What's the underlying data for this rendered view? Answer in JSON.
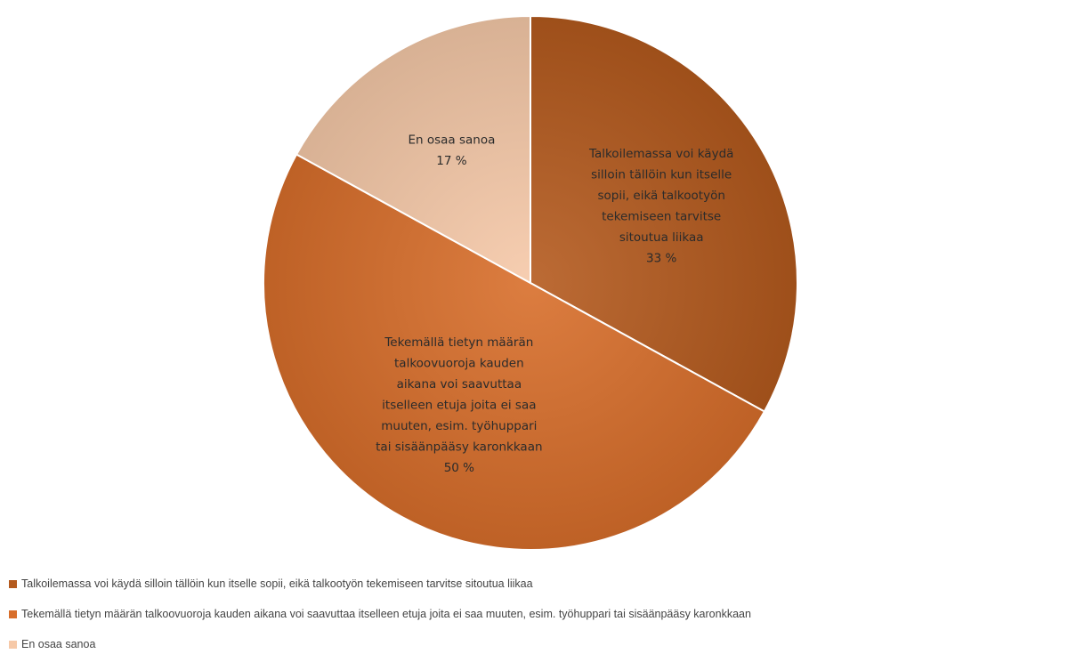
{
  "chart_data": {
    "type": "pie",
    "title": "",
    "slices": [
      {
        "label": "Talkoilemassa voi käydä silloin tällöin kun itselle sopii, eikä talkootyön tekemiseen tarvitse sitoutua liikaa",
        "label_lines": [
          "Talkoilemassa voi käydä",
          "silloin tällöin kun itselle",
          "sopii, eikä talkootyön",
          "tekemiseen tarvitse",
          "sitoutua liikaa"
        ],
        "value": 33,
        "value_label": "33 %",
        "color": "#b45a1e"
      },
      {
        "label": "Tekemällä tietyn määrän talkoovuoroja kauden aikana voi saavuttaa itselleen etuja joita ei saa muuten, esim. työhuppari tai sisäänpääsy karonkkaan",
        "label_lines": [
          "Tekemällä tietyn määrän",
          "talkoovuoroja kauden",
          "aikana voi saavuttaa",
          "itselleen etuja joita ei saa",
          "muuten, esim. työhuppari",
          "tai sisäänpääsy karonkkaan"
        ],
        "value": 50,
        "value_label": "50 %",
        "color": "#d86e2b"
      },
      {
        "label": "En osaa sanoa",
        "label_lines": [
          "En osaa sanoa"
        ],
        "value": 17,
        "value_label": "17 %",
        "color": "#f6c9a8"
      }
    ],
    "legend_position": "bottom-left"
  }
}
